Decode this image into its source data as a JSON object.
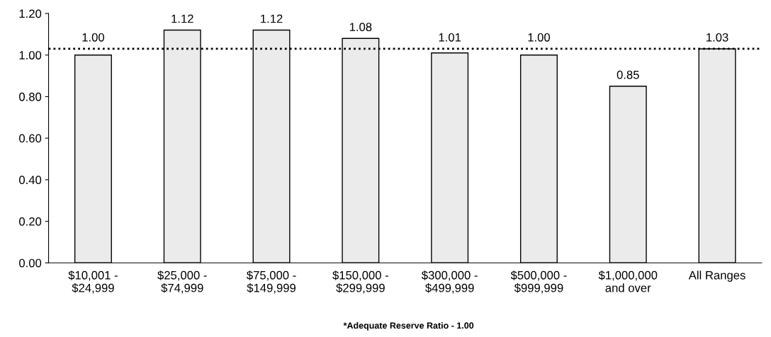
{
  "chart_data": {
    "type": "bar",
    "categories": [
      "$10,001 -\n$24,999",
      "$25,000 -\n$74,999",
      "$75,000 -\n$149,999",
      "$150,000 -\n$299,999",
      "$300,000 -\n$499,999",
      "$500,000 -\n$999,999",
      "$1,000,000\nand over",
      "All Ranges"
    ],
    "values": [
      1.0,
      1.12,
      1.12,
      1.08,
      1.01,
      1.0,
      0.85,
      1.03
    ],
    "value_labels": [
      "1.00",
      "1.12",
      "1.12",
      "1.08",
      "1.01",
      "1.00",
      "0.85",
      "1.03"
    ],
    "color": "#ebebeb",
    "ylim": [
      0,
      1.2
    ],
    "yticks": [
      {
        "value": 0,
        "label": "0.00"
      },
      {
        "value": 0.2,
        "label": "0.20"
      },
      {
        "value": 0.4,
        "label": "0.40"
      },
      {
        "value": 0.6,
        "label": "0.60"
      },
      {
        "value": 0.8,
        "label": "0.80"
      },
      {
        "value": 1.0,
        "label": "1.00"
      },
      {
        "value": 1.2,
        "label": "1.20"
      }
    ],
    "ref_lines": [
      {
        "axis": "y",
        "value": 1.03,
        "color": "#000000",
        "line_style": "dotted"
      }
    ],
    "annotations": [
      "*Adequate Reserve Ratio - 1.00"
    ],
    "grid": false,
    "legend": false
  }
}
